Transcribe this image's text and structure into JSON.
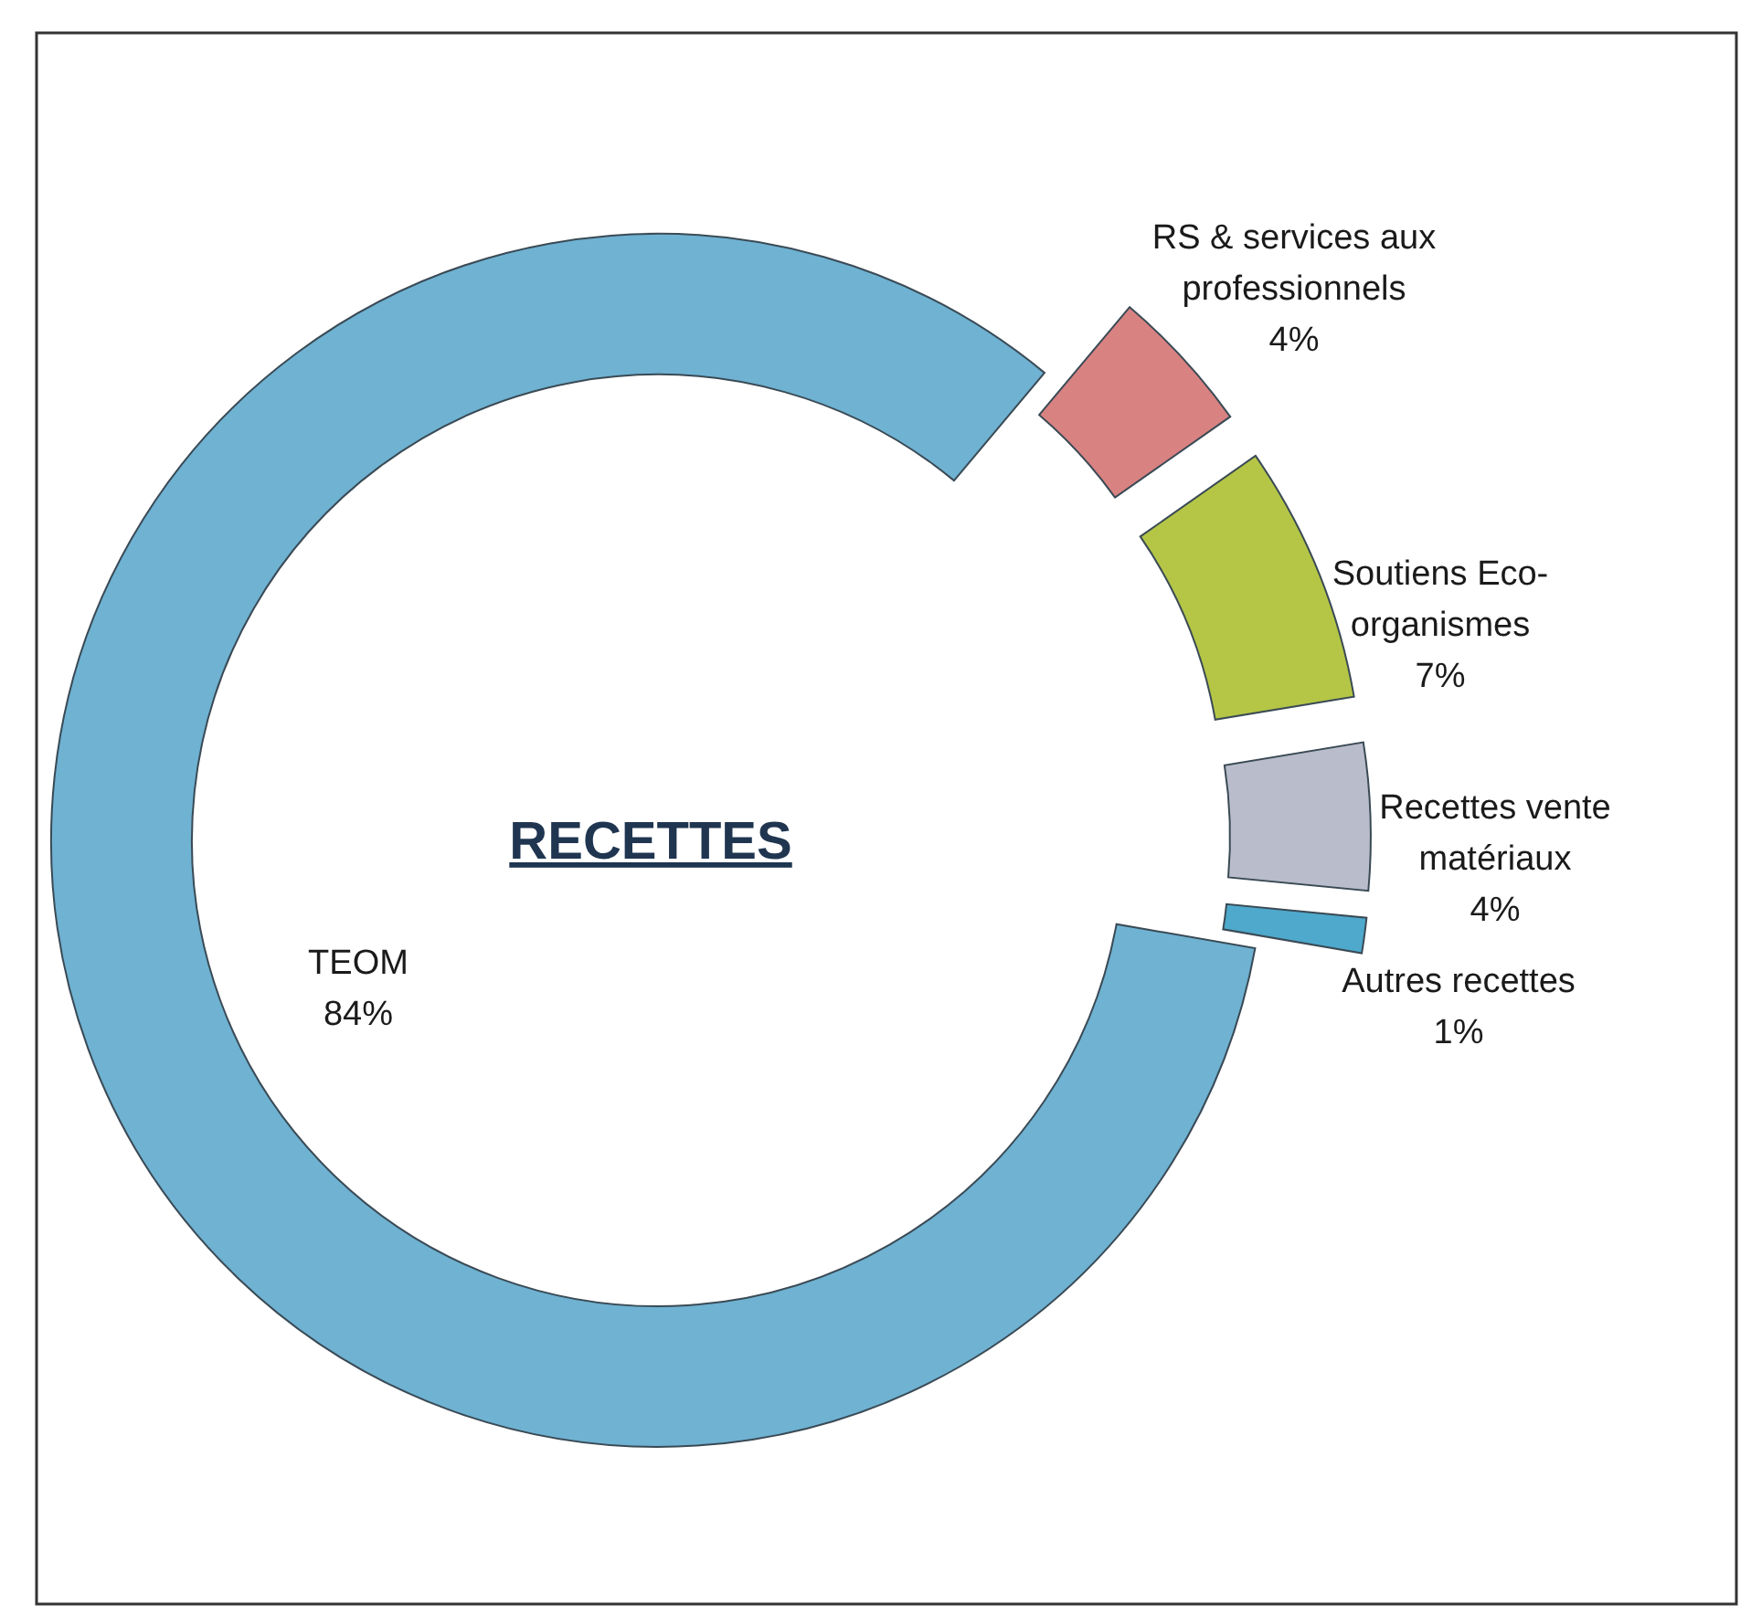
{
  "chart_data": {
    "type": "donut",
    "title": "RECETTES",
    "categories": [
      "RS & services aux professionnels",
      "Soutiens Eco-organismes",
      "Recettes vente matériaux",
      "Autres recettes",
      "TEOM"
    ],
    "values": [
      4,
      7,
      4,
      1,
      84
    ],
    "value_labels": [
      "4%",
      "7%",
      "4%",
      "1%",
      "84%"
    ],
    "colors": [
      "#d98282",
      "#b5c646",
      "#b9bccb",
      "#4ea9cc",
      "#6fb2d2"
    ],
    "legend": false
  }
}
